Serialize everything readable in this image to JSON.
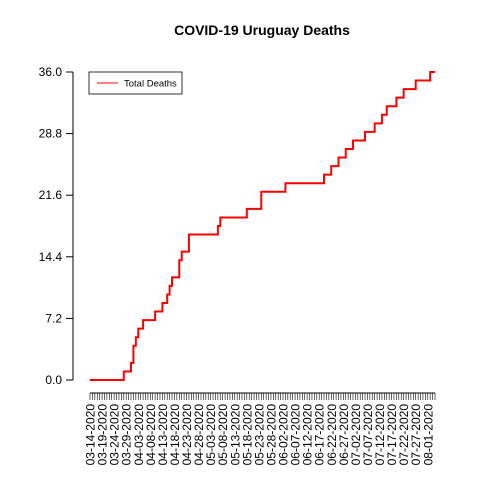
{
  "chart_data": {
    "type": "line",
    "title": "COVID-19 Uruguay Deaths",
    "xlabel": "",
    "ylabel": "",
    "ylim": [
      0,
      36
    ],
    "yticks": [
      "0.0",
      "7.2",
      "14.4",
      "21.6",
      "28.8",
      "36.0"
    ],
    "x_start": "03-14-2020",
    "x_end": "08-04-2020",
    "xtick_labels": [
      "03-14-2020",
      "03-19-2020",
      "03-24-2020",
      "03-29-2020",
      "04-03-2020",
      "04-08-2020",
      "04-13-2020",
      "04-18-2020",
      "04-23-2020",
      "04-28-2020",
      "05-03-2020",
      "05-08-2020",
      "05-13-2020",
      "05-18-2020",
      "05-23-2020",
      "05-28-2020",
      "06-02-2020",
      "06-07-2020",
      "06-12-2020",
      "06-17-2020",
      "06-22-2020",
      "06-27-2020",
      "07-02-2020",
      "07-07-2020",
      "07-12-2020",
      "07-17-2020",
      "07-22-2020",
      "07-27-2020",
      "08-01-2020"
    ],
    "legend": {
      "position": "top-left",
      "entries": [
        "Total Deaths"
      ]
    },
    "grid": false,
    "colors": {
      "series": "#ff0000",
      "axis": "#000000"
    },
    "series": [
      {
        "name": "Total Deaths",
        "x": [
          "03-14-2020",
          "03-28-2020",
          "03-31-2020",
          "04-01-2020",
          "04-02-2020",
          "04-03-2020",
          "04-05-2020",
          "04-06-2020",
          "04-10-2020",
          "04-11-2020",
          "04-13-2020",
          "04-15-2020",
          "04-16-2020",
          "04-17-2020",
          "04-19-2020",
          "04-20-2020",
          "04-21-2020",
          "04-22-2020",
          "04-24-2020",
          "04-27-2020",
          "04-28-2020",
          "05-03-2020",
          "05-06-2020",
          "05-07-2020",
          "05-12-2020",
          "05-18-2020",
          "05-24-2020",
          "06-03-2020",
          "06-19-2020",
          "06-22-2020",
          "06-25-2020",
          "06-28-2020",
          "07-01-2020",
          "07-06-2020",
          "07-10-2020",
          "07-13-2020",
          "07-15-2020",
          "07-19-2020",
          "07-22-2020",
          "07-27-2020",
          "08-02-2020",
          "08-04-2020"
        ],
        "values": [
          0,
          1,
          2,
          4,
          5,
          6,
          7,
          7,
          8,
          8,
          9,
          10,
          11,
          12,
          12,
          14,
          15,
          15,
          17,
          17,
          17,
          17,
          18,
          19,
          19,
          20,
          22,
          23,
          24,
          25,
          26,
          27,
          28,
          29,
          30,
          31,
          32,
          33,
          34,
          35,
          36,
          36
        ]
      }
    ]
  }
}
